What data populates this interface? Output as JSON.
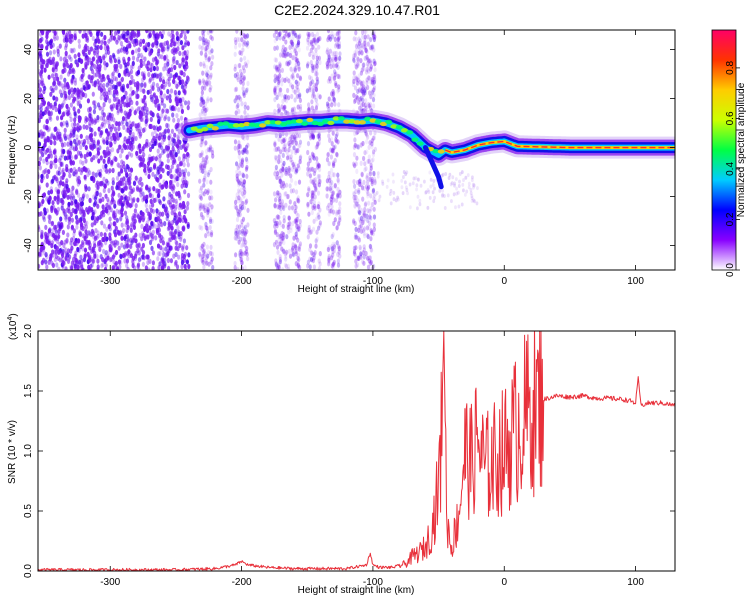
{
  "title": "C2E2.2024.329.10.47.R01",
  "chart_data": [
    {
      "type": "heatmap",
      "xlabel": "Height of straight line (km)",
      "ylabel": "Frequency (Hz)",
      "xlim": [
        -355,
        130
      ],
      "ylim": [
        -50,
        48
      ],
      "x_ticks": [
        "-300",
        "-200",
        "-100",
        "0",
        "100"
      ],
      "x_tick_values": [
        -300,
        -200,
        -100,
        0,
        100
      ],
      "y_ticks": [
        "40",
        "20",
        "0",
        "-20",
        "-40"
      ],
      "y_tick_values": [
        40,
        20,
        0,
        -20,
        -40
      ],
      "colorbar": {
        "label": "Normalized spectral amplitude",
        "range": [
          0,
          0.95
        ],
        "ticks": [
          "0.0",
          "0.2",
          "0.4",
          "0.6",
          "0.8"
        ],
        "tick_values": [
          0.0,
          0.2,
          0.4,
          0.6,
          0.8
        ],
        "colormap": [
          "#ffffff",
          "#8800ff",
          "#0000ff",
          "#00ccff",
          "#00ff44",
          "#ccff00",
          "#ffcc00",
          "#ff3300",
          "#ff0066"
        ]
      },
      "ridge": {
        "x": [
          -240,
          -230,
          -220,
          -210,
          -200,
          -190,
          -180,
          -170,
          -160,
          -150,
          -140,
          -130,
          -120,
          -110,
          -100,
          -90,
          -80,
          -70,
          -60,
          -50,
          -45,
          -40,
          -30,
          -20,
          -10,
          0,
          10,
          50,
          100,
          130
        ],
        "y": [
          7,
          8,
          8.5,
          9,
          8.5,
          9,
          10,
          9.5,
          10,
          10.5,
          10.5,
          11,
          11,
          10.5,
          11,
          10,
          8,
          5,
          0,
          -3,
          -1,
          -2,
          -1,
          1,
          2,
          2.5,
          0.5,
          0,
          0,
          0
        ]
      },
      "noise_regions_x": [
        [
          -355,
          -240
        ],
        [
          -232,
          -222
        ],
        [
          -205,
          -195
        ],
        [
          -175,
          -155
        ],
        [
          -150,
          -140
        ],
        [
          -135,
          -125
        ],
        [
          -115,
          -98
        ]
      ]
    },
    {
      "type": "line",
      "xlabel": "Height of straight line (km)",
      "ylabel": "SNR (10 * v/v)",
      "multiplier": "(x10",
      "multiplier_exp": "4",
      "multiplier_close": ")",
      "xlim": [
        -355,
        130
      ],
      "ylim": [
        0,
        2.0
      ],
      "x_ticks": [
        "-300",
        "-200",
        "-100",
        "0",
        "100"
      ],
      "x_tick_values": [
        -300,
        -200,
        -100,
        0,
        100
      ],
      "y_ticks": [
        "0.0",
        "0.5",
        "1.0",
        "1.5",
        "2.0"
      ],
      "y_tick_values": [
        0.0,
        0.5,
        1.0,
        1.5,
        2.0
      ],
      "color": "#e8303a",
      "series": [
        {
          "x": [
            -355,
            -300,
            -250,
            -220,
            -205,
            -200,
            -195,
            -180,
            -160,
            -140,
            -120,
            -105,
            -102,
            -100,
            -95,
            -85,
            -75,
            -70,
            -65,
            -60,
            -55,
            -50,
            -48,
            -46,
            -44,
            -42,
            -40,
            -35,
            -30,
            -25,
            -20,
            -15,
            -10,
            -5,
            0,
            5,
            10,
            20,
            30,
            40,
            50,
            60,
            70,
            80,
            90,
            95,
            100,
            102,
            104,
            110,
            120,
            130
          ],
          "y": [
            0.01,
            0.01,
            0.01,
            0.02,
            0.05,
            0.08,
            0.05,
            0.03,
            0.02,
            0.02,
            0.02,
            0.05,
            0.15,
            0.05,
            0.03,
            0.03,
            0.06,
            0.12,
            0.15,
            0.2,
            0.35,
            0.7,
            1.1,
            2.0,
            0.5,
            0.3,
            0.2,
            0.45,
            1.0,
            0.9,
            1.1,
            0.85,
            0.9,
            0.95,
            1.0,
            1.1,
            1.2,
            1.35,
            1.43,
            1.46,
            1.45,
            1.46,
            1.44,
            1.44,
            1.43,
            1.42,
            1.4,
            1.62,
            1.38,
            1.4,
            1.4,
            1.38
          ]
        }
      ]
    }
  ]
}
